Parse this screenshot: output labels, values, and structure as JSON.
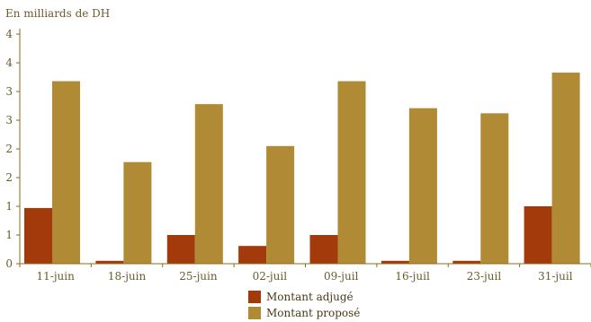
{
  "chart_data": {
    "type": "bar",
    "ylabel": "En milliards de DH",
    "categories": [
      "11-juin",
      "18-juin",
      "25-juin",
      "02-juil",
      "09-juil",
      "16-juil",
      "23-juil",
      "31-juil"
    ],
    "y_tick_labels": [
      "0",
      "1",
      "1",
      "2",
      "2",
      "3",
      "3",
      "4",
      "4"
    ],
    "ylim": [
      0,
      4
    ],
    "grid": false,
    "legend_position": "bottom-center",
    "series": [
      {
        "name": "Montant adjugé",
        "color": "#a33a0c",
        "values": [
          0.97,
          0.05,
          0.5,
          0.31,
          0.5,
          0.05,
          0.05,
          1.0
        ]
      },
      {
        "name": "Montant proposé",
        "color": "#b08a35",
        "values": [
          3.18,
          1.77,
          2.78,
          2.05,
          3.18,
          2.71,
          2.62,
          3.33
        ]
      }
    ]
  }
}
